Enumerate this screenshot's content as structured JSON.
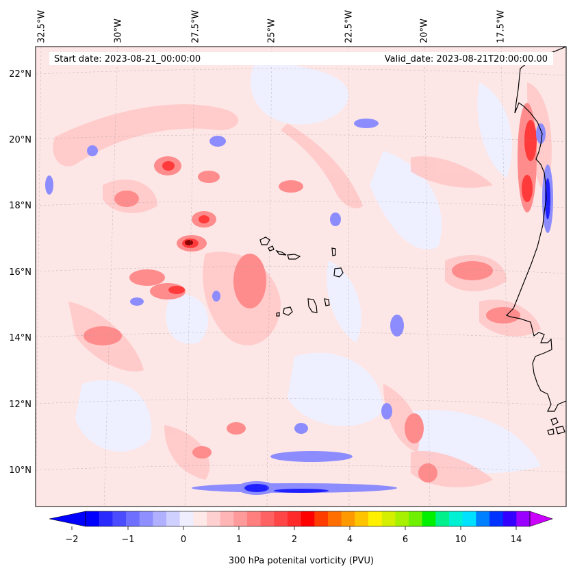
{
  "header": {
    "start_date": "Start date: 2023-08-21_00:00:00",
    "valid_date": "Valid_date: 2023-08-21T20:00:00.00"
  },
  "map": {
    "lon_labels": [
      "32.5°W",
      "30°W",
      "27.5°W",
      "25°W",
      "22.5°W",
      "20°W",
      "17.5°W"
    ],
    "lat_labels": [
      "22°N",
      "20°N",
      "18°N",
      "16°N",
      "14°N",
      "12°N",
      "10°N"
    ],
    "lon_values": [
      -32.5,
      -30,
      -27.5,
      -25,
      -22.5,
      -20,
      -17.5
    ],
    "lat_values": [
      22,
      20,
      18,
      16,
      14,
      12,
      10
    ],
    "extent": {
      "lon_min": -32.5,
      "lon_max": -15.2,
      "lat_min": 8.9,
      "lat_max": 22.7
    },
    "background_color": "#fde8e8",
    "coastline_color": "#000000"
  },
  "colorbar": {
    "ticks": [
      "−2",
      "−1",
      "0",
      "1",
      "2",
      "4",
      "6",
      "10",
      "14"
    ],
    "label": "300 hPa potenital vorticity (PVU)",
    "colors": [
      "#0000ff",
      "#2a2aff",
      "#4c4cff",
      "#6e6eff",
      "#8f8fff",
      "#b0b0ff",
      "#d0d0ff",
      "#eeeeff",
      "#ffe8e8",
      "#ffd0d0",
      "#ffb5b5",
      "#ff9a9a",
      "#ff7e7e",
      "#ff6262",
      "#ff4646",
      "#ff2a2a",
      "#ff0000",
      "#ff3c00",
      "#ff6e00",
      "#ff9900",
      "#ffc400",
      "#fff000",
      "#d4f000",
      "#a6f000",
      "#6ef000",
      "#00f000",
      "#00f08c",
      "#00f0d4",
      "#00e0ff",
      "#0080ff",
      "#0033ff",
      "#3300ff",
      "#9900ff"
    ],
    "extend_min_color": "#0000ff",
    "extend_max_color": "#cc00ff"
  }
}
